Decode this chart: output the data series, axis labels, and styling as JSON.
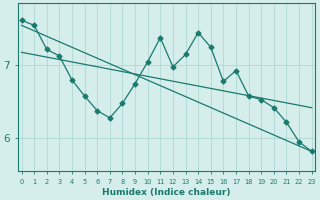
{
  "xlabel": "Humidex (Indice chaleur)",
  "x": [
    0,
    1,
    2,
    3,
    4,
    5,
    6,
    7,
    8,
    9,
    10,
    11,
    12,
    13,
    14,
    15,
    16,
    17,
    18,
    19,
    20,
    21,
    22,
    23
  ],
  "line1": [
    7.62,
    7.55,
    7.22,
    7.13,
    6.8,
    6.58,
    6.38,
    6.28,
    6.48,
    6.75,
    7.05,
    7.38,
    6.98,
    7.15,
    7.45,
    7.25,
    6.78,
    6.93,
    6.58,
    6.53,
    6.42,
    6.22,
    5.95,
    5.82
  ],
  "line2_x": [
    0,
    23
  ],
  "line2_y": [
    7.55,
    5.82
  ],
  "line3_x": [
    0,
    23
  ],
  "line3_y": [
    7.18,
    6.42
  ],
  "yticks": [
    6,
    7
  ],
  "ylim": [
    5.55,
    7.85
  ],
  "xlim": [
    -0.3,
    23.3
  ],
  "xticks": [
    0,
    1,
    2,
    3,
    4,
    5,
    6,
    7,
    8,
    9,
    10,
    11,
    12,
    13,
    14,
    15,
    16,
    17,
    18,
    19,
    20,
    21,
    22,
    23
  ],
  "bg_color": "#d5eeeb",
  "grid_color": "#aed8d3",
  "line_color": "#1a7a6e",
  "marker_size": 2.5,
  "line_width": 0.9
}
